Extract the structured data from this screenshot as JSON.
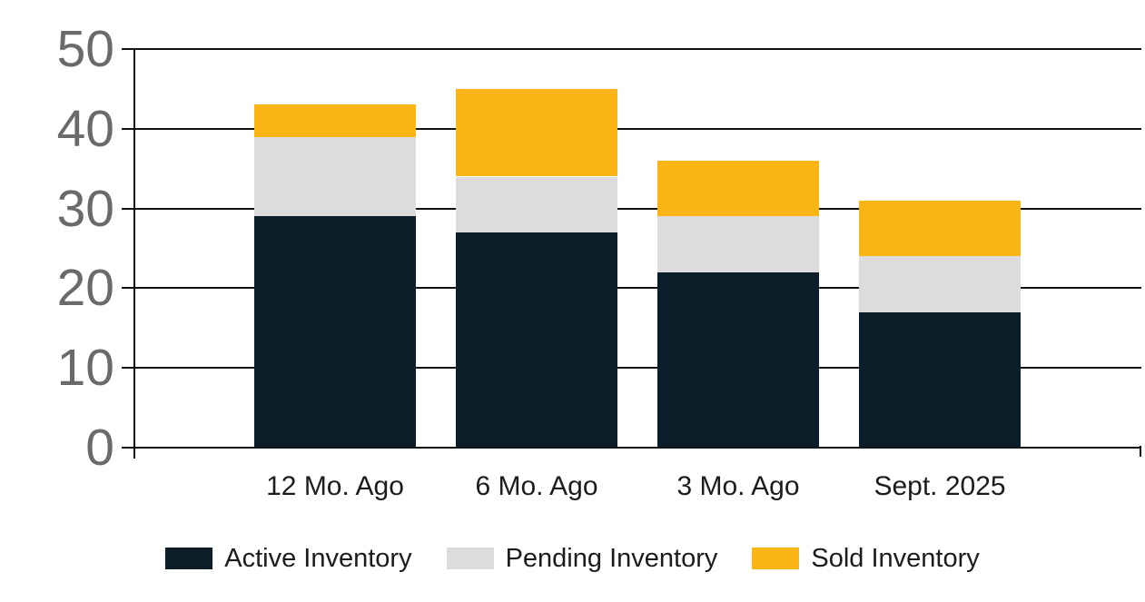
{
  "chart_data": {
    "type": "bar",
    "stacked": true,
    "title": "",
    "xlabel": "",
    "ylabel": "",
    "categories": [
      "12 Mo. Ago",
      "6 Mo. Ago",
      "3 Mo. Ago",
      "Sept. 2025"
    ],
    "series": [
      {
        "name": "Active Inventory",
        "color": "#0b1d28",
        "values": [
          29,
          27,
          22,
          17
        ]
      },
      {
        "name": "Pending Inventory",
        "color": "#dcdcdc",
        "values": [
          10,
          7,
          7,
          7
        ]
      },
      {
        "name": "Sold Inventory",
        "color": "#fbb616",
        "values": [
          4,
          11,
          7,
          7
        ]
      }
    ],
    "stack_totals": [
      43,
      45,
      36,
      31
    ],
    "ylim": [
      0,
      50
    ],
    "yticks": [
      0,
      10,
      20,
      30,
      40,
      50
    ],
    "ytick_labels": [
      "0",
      "10",
      "20",
      "30",
      "40",
      "50"
    ],
    "grid": "horizontal",
    "legend_position": "bottom"
  },
  "colors": {
    "background": "#ffffff",
    "axis_line": "#111111",
    "gridline": "#111111",
    "y_tick_label": "#6a6a6a",
    "category_label": "#1c1c1c",
    "legend_label": "#1c1c1c",
    "active_inventory": "#0b1d28",
    "pending_inventory": "#dcdcdc",
    "sold_inventory": "#fbb616"
  }
}
